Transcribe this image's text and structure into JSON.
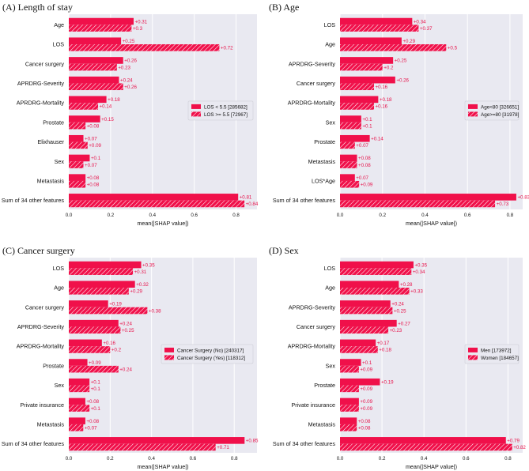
{
  "colors": {
    "bar": "#f0104a",
    "plot_bg": "#e9e9f1",
    "grid": "#ffffff",
    "value_text": "#e8124a"
  },
  "chart_data": [
    {
      "type": "bar",
      "orientation": "horizontal",
      "title": "(A) Length of stay",
      "xlabel": "mean(|SHAP value|)",
      "xlim": [
        0,
        0.9
      ],
      "xticks": [
        0.0,
        0.2,
        0.4,
        0.6,
        0.8
      ],
      "xtick_labels": [
        "0.0",
        "0.2",
        "0.4",
        "0.6",
        "0.8"
      ],
      "legend_position": "center-right",
      "categories": [
        "Age",
        "LOS",
        "Cancer surgery",
        "APRDRG-Severity",
        "APRDRG-Mortality",
        "Prostate",
        "Elixhauser",
        "Sex",
        "Metastasis",
        "Sum of 34 other features"
      ],
      "series": [
        {
          "name": "LOS < 5.5 [285682]",
          "hatch": false,
          "values": [
            0.31,
            0.25,
            0.26,
            0.24,
            0.18,
            0.15,
            0.07,
            0.1,
            0.08,
            0.81
          ],
          "labels": [
            "+0.31",
            "+0.25",
            "+0.26",
            "+0.24",
            "+0.18",
            "+0.15",
            "+0.07",
            "+0.1",
            "+0.08",
            "+0.81"
          ]
        },
        {
          "name": "LOS >= 5.5 [72967]",
          "hatch": true,
          "values": [
            0.3,
            0.72,
            0.23,
            0.26,
            0.14,
            0.08,
            0.09,
            0.07,
            0.08,
            0.84
          ],
          "labels": [
            "+0.3",
            "+0.72",
            "+0.23",
            "+0.26",
            "+0.14",
            "+0.08",
            "+0.09",
            "+0.07",
            "+0.08",
            "+0.84"
          ]
        }
      ]
    },
    {
      "type": "bar",
      "orientation": "horizontal",
      "title": "(B) Age",
      "xlabel": "mean(|SHAP value|)",
      "xlim": [
        0,
        0.86
      ],
      "xticks": [
        0.0,
        0.2,
        0.4,
        0.6,
        0.8
      ],
      "xtick_labels": [
        "0.0",
        "0.2",
        "0.4",
        "0.6",
        "0.8"
      ],
      "legend_position": "center-right",
      "categories": [
        "LOS",
        "Age",
        "APRDRG-Severity",
        "Cancer surgery",
        "APRDRG-Mortality",
        "Sex",
        "Prostate",
        "Metastasis",
        "LOS*Age",
        "Sum of 34 other features"
      ],
      "series": [
        {
          "name": "Age<80 [326651]",
          "hatch": false,
          "values": [
            0.34,
            0.29,
            0.25,
            0.26,
            0.18,
            0.1,
            0.14,
            0.08,
            0.07,
            0.83
          ],
          "labels": [
            "+0.34",
            "+0.29",
            "+0.25",
            "+0.26",
            "+0.18",
            "+0.1",
            "+0.14",
            "+0.08",
            "+0.07",
            "+0.83"
          ]
        },
        {
          "name": "Age>=80 [31978]",
          "hatch": true,
          "values": [
            0.37,
            0.5,
            0.2,
            0.16,
            0.16,
            0.1,
            0.07,
            0.08,
            0.09,
            0.73
          ],
          "labels": [
            "+0.37",
            "+0.5",
            "+0.2",
            "+0.16",
            "+0.16",
            "+0.1",
            "+0.07",
            "+0.08",
            "+0.09",
            "+0.73"
          ]
        }
      ]
    },
    {
      "type": "bar",
      "orientation": "horizontal",
      "title": "(C) Cancer surgery",
      "xlabel": "mean(|SHAP value|)",
      "xlim": [
        0,
        0.91
      ],
      "xticks": [
        0.0,
        0.2,
        0.4,
        0.6,
        0.8
      ],
      "xtick_labels": [
        "0.0",
        "0.2",
        "0.4",
        "0.6",
        "0.8"
      ],
      "legend_position": "center-right",
      "categories": [
        "LOS",
        "Age",
        "Cancer surgery",
        "APRDRG-Severity",
        "APRDRG-Mortality",
        "Prostate",
        "Sex",
        "Private insurance",
        "Metastasis",
        "Sum of 34 other features"
      ],
      "series": [
        {
          "name": "Cancer Surgery (No) [240317]",
          "hatch": false,
          "values": [
            0.35,
            0.32,
            0.19,
            0.24,
            0.16,
            0.09,
            0.1,
            0.08,
            0.08,
            0.85
          ],
          "labels": [
            "+0.35",
            "+0.32",
            "+0.19",
            "+0.24",
            "+0.16",
            "+0.09",
            "+0.1",
            "+0.08",
            "+0.08",
            "+0.85"
          ]
        },
        {
          "name": "Cancer Surgery (Yes) [118312]",
          "hatch": true,
          "values": [
            0.31,
            0.29,
            0.38,
            0.25,
            0.2,
            0.24,
            0.1,
            0.1,
            0.07,
            0.71
          ],
          "labels": [
            "+0.31",
            "+0.29",
            "+0.38",
            "+0.25",
            "+0.2",
            "+0.24",
            "+0.1",
            "+0.1",
            "+0.07",
            "+0.71"
          ]
        }
      ]
    },
    {
      "type": "bar",
      "orientation": "horizontal",
      "title": "(D) Sex",
      "xlabel": "mean(|SHAP value|)",
      "xlim": [
        0,
        0.87
      ],
      "xticks": [
        0.0,
        0.2,
        0.4,
        0.6,
        0.8
      ],
      "xtick_labels": [
        "0.0",
        "0.2",
        "0.4",
        "0.6",
        "0.8"
      ],
      "legend_position": "center-right",
      "categories": [
        "LOS",
        "Age",
        "APRDRG-Severity",
        "Cancer surgery",
        "APRDRG-Mortality",
        "Sex",
        "Prostate",
        "Private insurance",
        "Metastasis",
        "Sum of 34 other features"
      ],
      "series": [
        {
          "name": "Men [173972]",
          "hatch": false,
          "values": [
            0.35,
            0.28,
            0.24,
            0.27,
            0.17,
            0.1,
            0.19,
            0.09,
            0.08,
            0.79
          ],
          "labels": [
            "+0.35",
            "+0.28",
            "+0.24",
            "+0.27",
            "+0.17",
            "+0.1",
            "+0.19",
            "+0.09",
            "+0.08",
            "+0.79"
          ]
        },
        {
          "name": "Women [184657]",
          "hatch": true,
          "values": [
            0.34,
            0.33,
            0.25,
            0.23,
            0.18,
            0.09,
            0.09,
            0.09,
            0.08,
            0.82
          ],
          "labels": [
            "+0.34",
            "+0.33",
            "+0.25",
            "+0.23",
            "+0.18",
            "+0.09",
            "+0.09",
            "+0.09",
            "+0.08",
            "+0.82"
          ]
        }
      ]
    }
  ]
}
